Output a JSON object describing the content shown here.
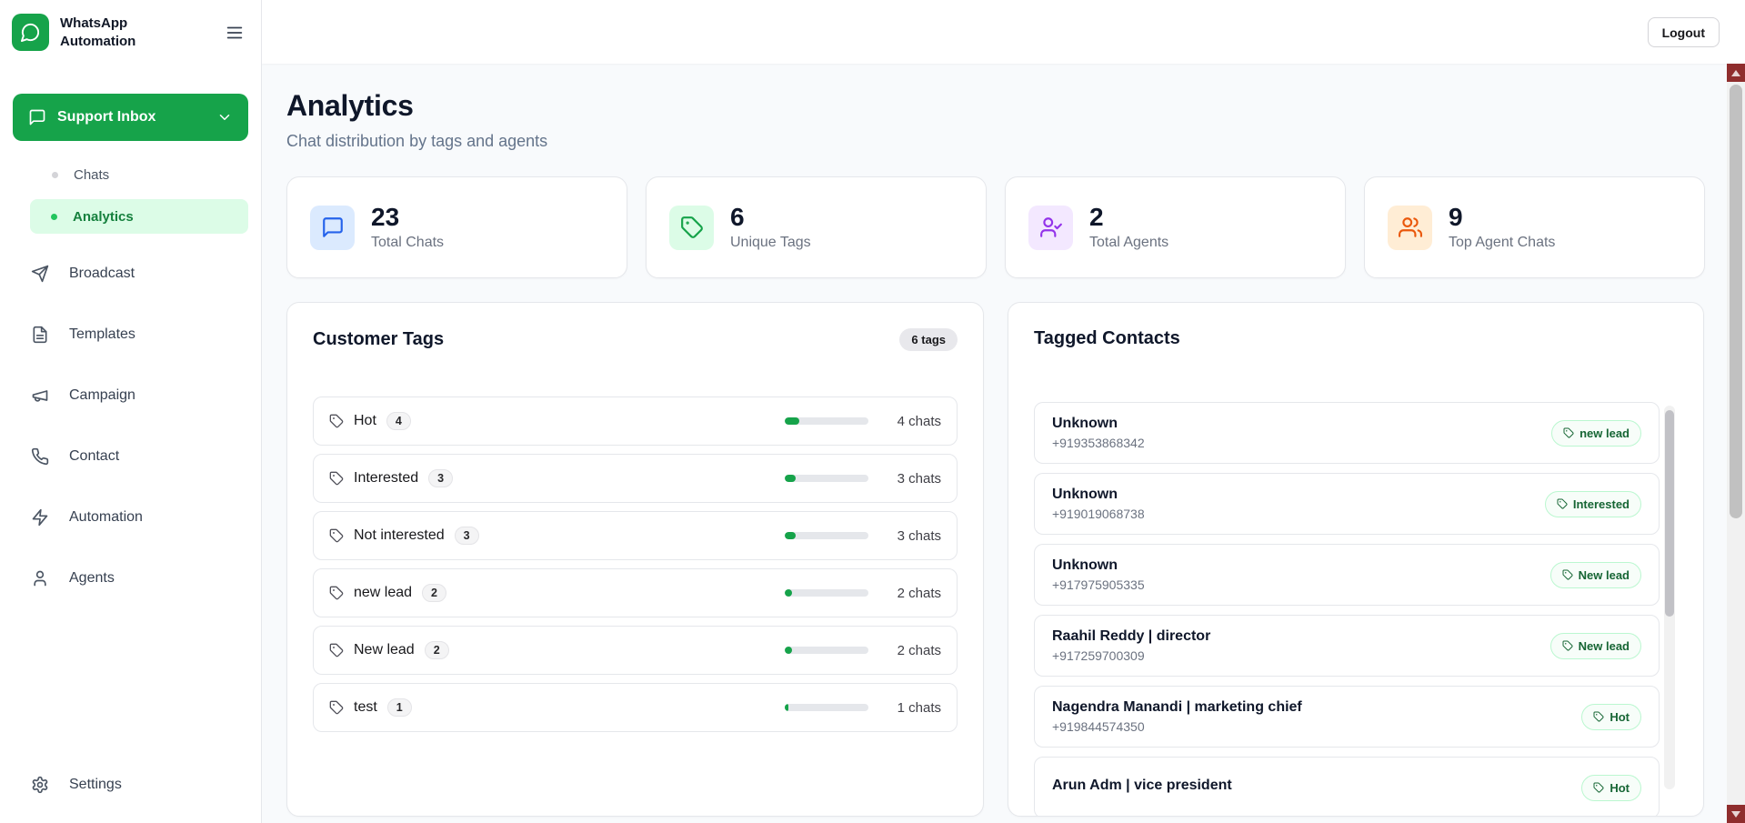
{
  "app": {
    "name": "WhatsApp Automation"
  },
  "topbar": {
    "logout": "Logout"
  },
  "sidebar": {
    "inbox": {
      "label": "Support Inbox"
    },
    "sub": [
      {
        "label": "Chats"
      },
      {
        "label": "Analytics"
      }
    ],
    "items": [
      {
        "label": "Broadcast"
      },
      {
        "label": "Templates"
      },
      {
        "label": "Campaign"
      },
      {
        "label": "Contact"
      },
      {
        "label": "Automation"
      },
      {
        "label": "Agents"
      }
    ],
    "settings": {
      "label": "Settings"
    }
  },
  "page": {
    "title": "Analytics",
    "subtitle": "Chat distribution by tags and agents"
  },
  "stats": [
    {
      "value": "23",
      "label": "Total Chats",
      "icon": "message-square-icon",
      "accent": "#2563eb",
      "bg": "#dbeafe"
    },
    {
      "value": "6",
      "label": "Unique Tags",
      "icon": "tag-icon",
      "accent": "#16a34a",
      "bg": "#dcfce7"
    },
    {
      "value": "2",
      "label": "Total Agents",
      "icon": "user-check-icon",
      "accent": "#9333ea",
      "bg": "#f3e8ff"
    },
    {
      "value": "9",
      "label": "Top Agent Chats",
      "icon": "users-icon",
      "accent": "#ea580c",
      "bg": "#ffedd5"
    }
  ],
  "customer_tags": {
    "title": "Customer Tags",
    "badge": "6 tags",
    "total_chats": 23,
    "rows": [
      {
        "label": "Hot",
        "count": "4",
        "chats": "4 chats",
        "pct": 17
      },
      {
        "label": "Interested",
        "count": "3",
        "chats": "3 chats",
        "pct": 13
      },
      {
        "label": "Not interested",
        "count": "3",
        "chats": "3 chats",
        "pct": 13
      },
      {
        "label": "new lead",
        "count": "2",
        "chats": "2 chats",
        "pct": 9
      },
      {
        "label": "New lead",
        "count": "2",
        "chats": "2 chats",
        "pct": 9
      },
      {
        "label": "test",
        "count": "1",
        "chats": "1 chats",
        "pct": 4
      }
    ]
  },
  "tagged_contacts": {
    "title": "Tagged Contacts",
    "contacts": [
      {
        "name": "Unknown",
        "phone": "+919353868342",
        "tag": "new lead"
      },
      {
        "name": "Unknown",
        "phone": "+919019068738",
        "tag": "Interested"
      },
      {
        "name": "Unknown",
        "phone": "+917975905335",
        "tag": "New lead"
      },
      {
        "name": "Raahil Reddy | director",
        "phone": "+917259700309",
        "tag": "New lead"
      },
      {
        "name": "Nagendra Manandi | marketing chief",
        "phone": "+919844574350",
        "tag": "Hot"
      },
      {
        "name": "Arun Adm | vice president",
        "phone": "",
        "tag": "Hot"
      }
    ]
  },
  "colors": {
    "brand_green": "#16a34a",
    "active_item_bg": "#dcfce7",
    "active_item_text": "#15803d",
    "progress_fill": "#16a34a",
    "badge_border": "#bbf7d0",
    "badge_text": "#166534"
  }
}
